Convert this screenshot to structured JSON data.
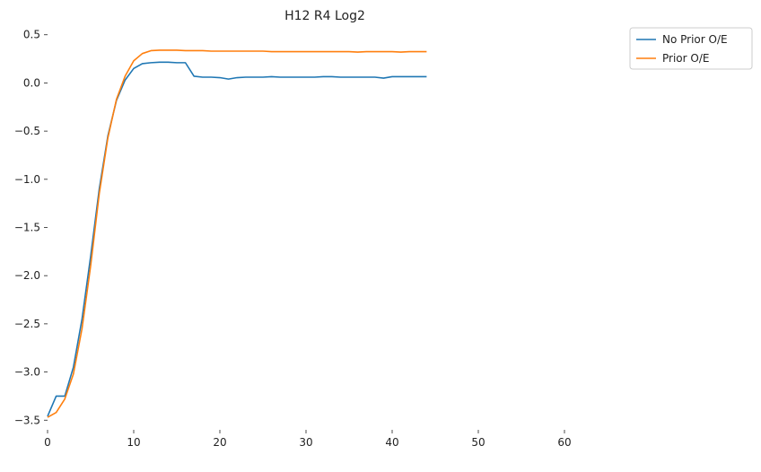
{
  "chart_data": {
    "type": "line",
    "title": "H12 R4 Log2",
    "xlabel": "",
    "ylabel": "",
    "xlim": [
      0,
      70
    ],
    "ylim": [
      -3.6,
      0.6
    ],
    "xticks": [
      0,
      10,
      20,
      30,
      40,
      50,
      60
    ],
    "yticks": [
      0.5,
      0.0,
      -0.5,
      -1.0,
      -1.5,
      -2.0,
      -2.5,
      -3.0,
      -3.5
    ],
    "xtick_labels": [
      "0",
      "10",
      "20",
      "30",
      "40",
      "50",
      "60"
    ],
    "ytick_labels": [
      "0.5",
      "0.0",
      "−0.5",
      "−1.0",
      "−1.5",
      "−2.0",
      "−2.5",
      "−3.0",
      "−3.5"
    ],
    "grid": false,
    "legend_position": "top-right",
    "x": [
      0,
      1,
      2,
      3,
      4,
      5,
      6,
      7,
      8,
      9,
      10,
      11,
      12,
      13,
      14,
      15,
      16,
      17,
      18,
      19,
      20,
      21,
      22,
      23,
      24,
      25,
      26,
      27,
      28,
      29,
      30,
      31,
      32,
      33,
      34,
      35,
      36,
      37,
      38,
      39,
      40,
      41,
      42,
      43,
      44
    ],
    "series": [
      {
        "name": "No Prior O/E",
        "color": "#1f77b4",
        "values": [
          -3.46,
          -3.25,
          -3.25,
          -2.95,
          -2.45,
          -1.8,
          -1.1,
          -0.55,
          -0.18,
          0.03,
          0.15,
          0.2,
          0.21,
          0.215,
          0.215,
          0.21,
          0.21,
          0.07,
          0.06,
          0.06,
          0.055,
          0.04,
          0.055,
          0.06,
          0.06,
          0.06,
          0.065,
          0.06,
          0.06,
          0.06,
          0.06,
          0.06,
          0.065,
          0.065,
          0.06,
          0.06,
          0.06,
          0.06,
          0.06,
          0.05,
          0.065,
          0.065,
          0.065,
          0.065,
          0.065
        ]
      },
      {
        "name": "Prior O/E",
        "color": "#ff7f0e",
        "values": [
          -3.47,
          -3.42,
          -3.28,
          -3.02,
          -2.55,
          -1.9,
          -1.15,
          -0.57,
          -0.17,
          0.07,
          0.23,
          0.305,
          0.335,
          0.34,
          0.34,
          0.34,
          0.335,
          0.335,
          0.335,
          0.33,
          0.33,
          0.33,
          0.33,
          0.33,
          0.33,
          0.33,
          0.325,
          0.325,
          0.325,
          0.325,
          0.325,
          0.325,
          0.325,
          0.325,
          0.325,
          0.325,
          0.32,
          0.325,
          0.325,
          0.325,
          0.325,
          0.32,
          0.325,
          0.325,
          0.325
        ]
      }
    ]
  }
}
